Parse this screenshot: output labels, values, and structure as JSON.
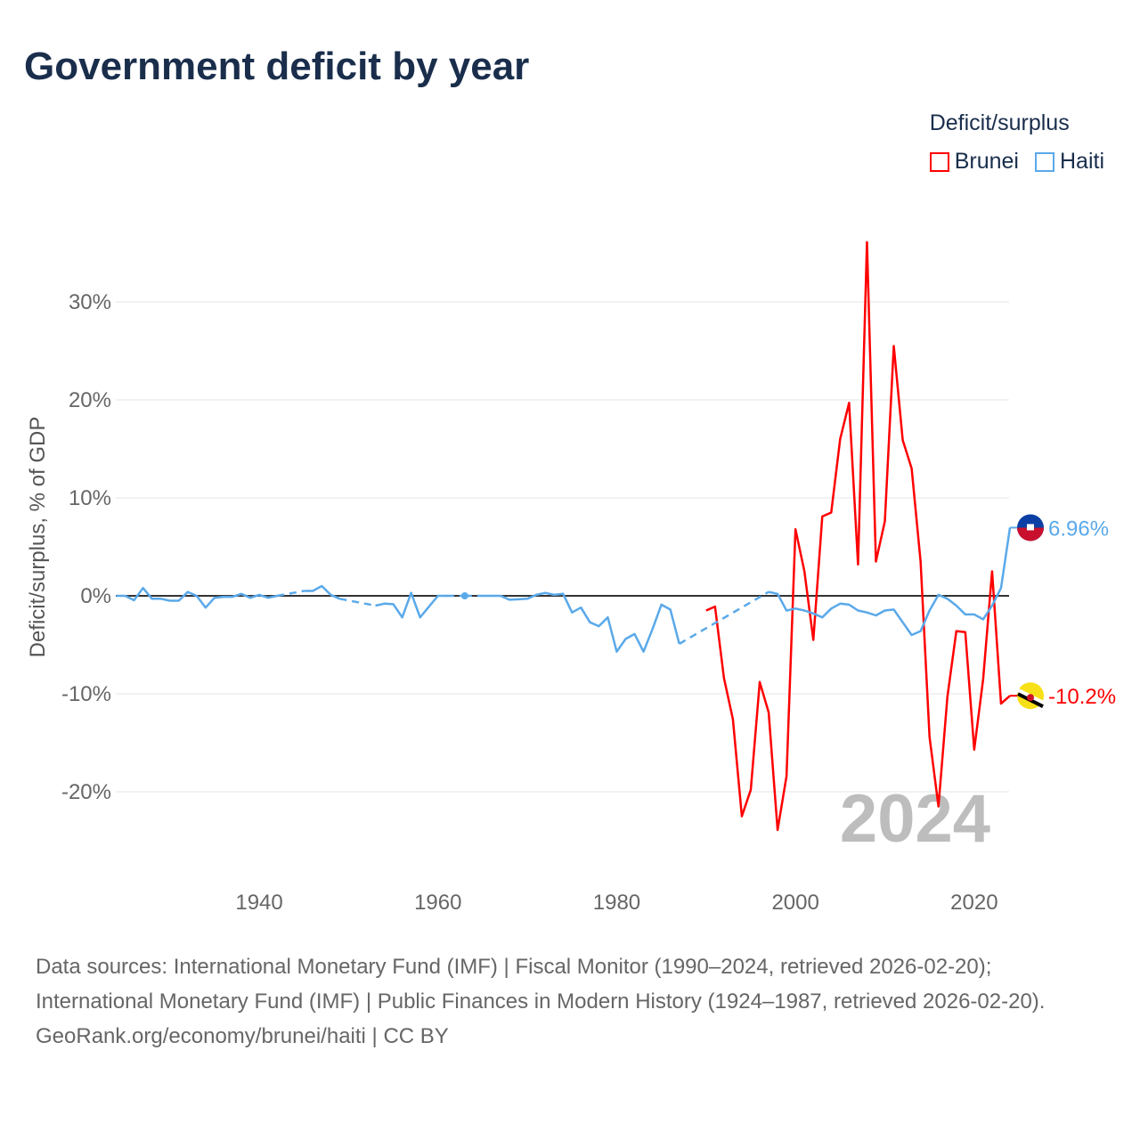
{
  "title": "Government deficit by year",
  "legend": {
    "title": "Deficit/surplus",
    "items": [
      {
        "label": "Brunei",
        "color": "#ff0000"
      },
      {
        "label": "Haiti",
        "color": "#5aa9ea"
      }
    ]
  },
  "chart_data": {
    "type": "line",
    "title": "Government deficit by year",
    "xlabel": "",
    "ylabel": "Deficit/surplus, % of GDP",
    "xlim": [
      1924,
      2024
    ],
    "ylim": [
      -28,
      36
    ],
    "x_ticks": [
      1940,
      1960,
      1980,
      2000,
      2020
    ],
    "y_ticks": [
      {
        "value": 30,
        "label": "30%"
      },
      {
        "value": 20,
        "label": "20%"
      },
      {
        "value": 10,
        "label": "10%"
      },
      {
        "value": 0,
        "label": "0%"
      },
      {
        "value": -10,
        "label": "-10%"
      },
      {
        "value": -20,
        "label": "-20%"
      }
    ],
    "grid": true,
    "legend_position": "top-right",
    "year_watermark": "2024",
    "series": [
      {
        "name": "Brunei",
        "color": "#ff0000",
        "start_year": 1990,
        "end_label": "-10.2%",
        "values": [
          -1.5,
          -1.1,
          -8.4,
          -12.6,
          -22.5,
          -19.8,
          -8.8,
          -11.9,
          -23.9,
          -18.4,
          6.8,
          2.5,
          -4.5,
          8.1,
          8.5,
          16.0,
          19.7,
          3.2,
          36.1,
          3.5,
          7.6,
          25.5,
          15.9,
          13.0,
          3.5,
          -14.4,
          -21.5,
          -10.3,
          -3.6,
          -3.7,
          -15.7,
          -8.5,
          2.5,
          -11.0,
          -10.2
        ]
      },
      {
        "name": "Haiti",
        "color": "#5aa9ea",
        "start_year": 1924,
        "end_label": "6.96%",
        "values": [
          0,
          0,
          -0.45,
          0.8,
          -0.3,
          -0.3,
          -0.5,
          -0.5,
          0.4,
          0,
          -1.2,
          -0.2,
          -0.1,
          -0.1,
          0.2,
          -0.2,
          0.1,
          -0.2,
          0,
          null,
          null,
          0.5,
          0.5,
          1.0,
          0.1,
          -0.3,
          null,
          null,
          null,
          -1.0,
          -0.8,
          -0.85,
          -2.2,
          0.3,
          -2.2,
          -1.1,
          0,
          0,
          null,
          0,
          null,
          0,
          0,
          0,
          -0.4,
          -0.35,
          -0.3,
          0.1,
          0.3,
          0.1,
          0.2,
          -1.7,
          -1.2,
          -2.7,
          -3.1,
          -2.2,
          -5.7,
          -4.4,
          -3.9,
          -5.7,
          -3.4,
          -0.9,
          -1.4,
          -4.9,
          null,
          null,
          null,
          null,
          null,
          null,
          null,
          null,
          null,
          0.4,
          0.2,
          -1.5,
          -1.3,
          -1.5,
          -1.8,
          -2.2,
          -1.3,
          -0.8,
          -0.9,
          -1.5,
          -1.7,
          -2.0,
          -1.5,
          -1.4,
          -2.7,
          -4.0,
          -3.6,
          -1.5,
          0.1,
          -0.3,
          -1.0,
          -1.9,
          -1.9,
          -2.4,
          -1.0,
          0.8,
          6.96
        ]
      }
    ]
  },
  "footer": {
    "sources": "Data sources: International Monetary Fund (IMF) | Fiscal Monitor (1990–2024, retrieved 2026-02-20); International Monetary Fund (IMF) | Public Finances in Modern History (1924–1987, retrieved 2026-02-20).",
    "credit": "GeoRank.org/economy/brunei/haiti | CC BY"
  }
}
